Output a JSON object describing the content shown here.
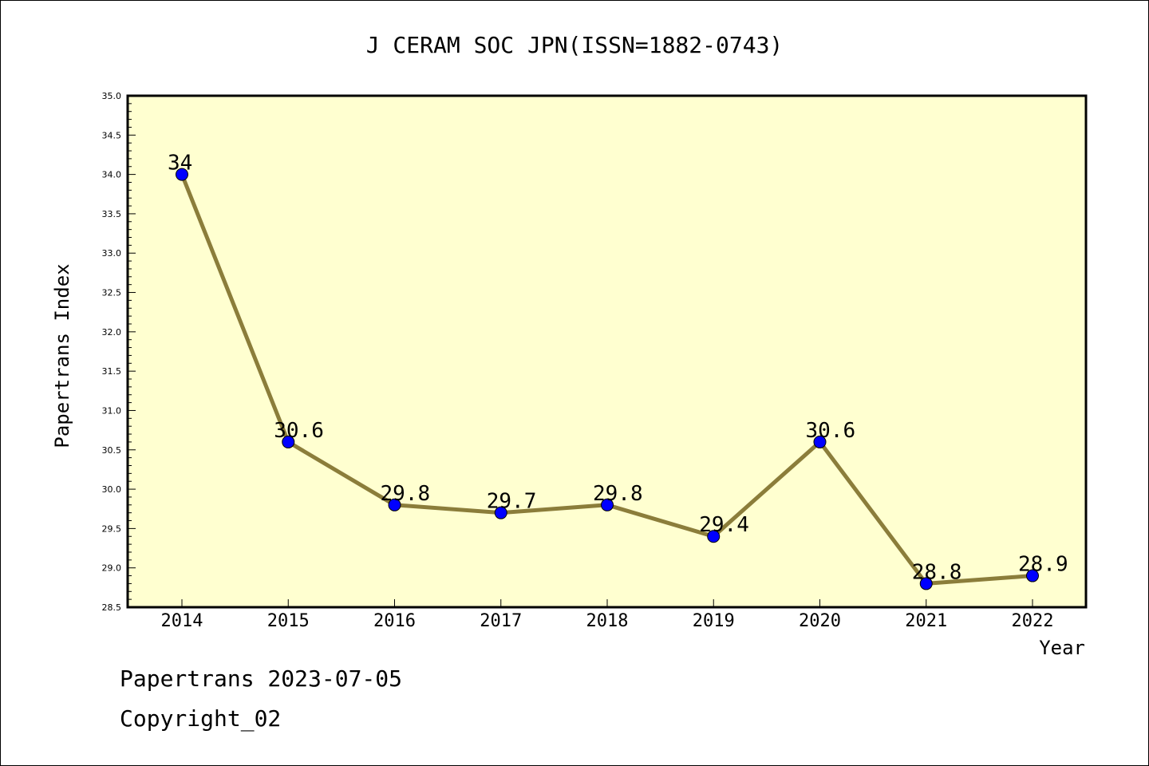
{
  "chart_data": {
    "type": "line",
    "title": "J CERAM SOC JPN(ISSN=1882-0743)",
    "xlabel": "Year",
    "ylabel": "Papertrans Index",
    "categories": [
      "2014",
      "2015",
      "2016",
      "2017",
      "2018",
      "2019",
      "2020",
      "2021",
      "2022"
    ],
    "series": [
      {
        "values": [
          34,
          30.6,
          29.8,
          29.7,
          29.8,
          29.4,
          30.6,
          28.8,
          28.9
        ],
        "data_labels": [
          "34",
          "30.6",
          "29.8",
          "29.7",
          "29.8",
          "29.4",
          "30.6",
          "28.8",
          "28.9"
        ]
      }
    ],
    "ylim": [
      28.5,
      35.0
    ],
    "yticks": [
      "28.5",
      "29.0",
      "29.5",
      "30.0",
      "30.5",
      "31.0",
      "31.5",
      "32.0",
      "32.5",
      "33.0",
      "33.5",
      "34.0",
      "34.5",
      "35.0"
    ],
    "grid": false,
    "colors": {
      "plot_background": "#ffffd0",
      "line": "#8b7d3a",
      "marker": "#0000ff"
    }
  },
  "footer": {
    "date_line": "Papertrans 2023-07-05",
    "copyright": "Copyright_02"
  }
}
